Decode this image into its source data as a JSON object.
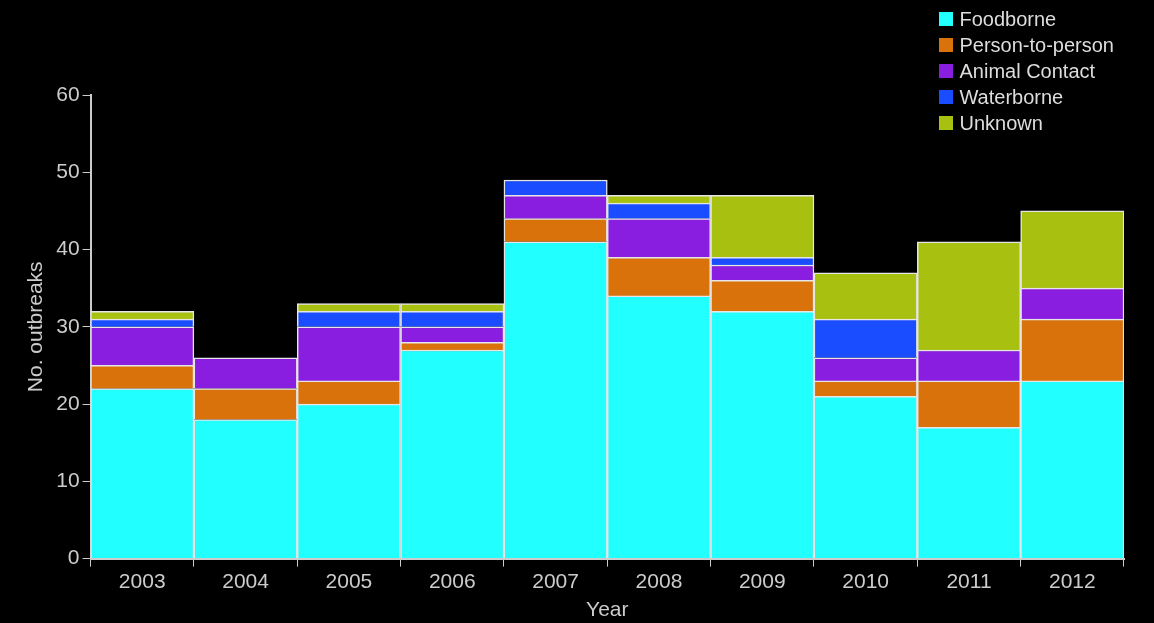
{
  "chart_data": {
    "type": "bar",
    "stacked": true,
    "xlabel": "Year",
    "ylabel": "No. outbreaks",
    "categories": [
      "2003",
      "2004",
      "2005",
      "2006",
      "2007",
      "2008",
      "2009",
      "2010",
      "2011",
      "2012"
    ],
    "series": [
      {
        "name": "Foodborne",
        "color": "#22ffff",
        "values": [
          22,
          18,
          20,
          27,
          41,
          34,
          32,
          21,
          17,
          23
        ]
      },
      {
        "name": "Person-to-person",
        "color": "#d9720a",
        "values": [
          3,
          4,
          3,
          1,
          3,
          5,
          4,
          2,
          6,
          8
        ]
      },
      {
        "name": "Animal Contact",
        "color": "#8a1ee0",
        "values": [
          5,
          4,
          7,
          2,
          3,
          5,
          2,
          3,
          4,
          4
        ]
      },
      {
        "name": "Waterborne",
        "color": "#1a4dff",
        "values": [
          1,
          0,
          2,
          2,
          2,
          2,
          1,
          5,
          0,
          0
        ]
      },
      {
        "name": "Unknown",
        "color": "#a8c010",
        "values": [
          1,
          0,
          1,
          1,
          0,
          1,
          8,
          6,
          14,
          10
        ]
      }
    ],
    "ylim": [
      0,
      60
    ],
    "yticks": [
      0,
      10,
      20,
      30,
      40,
      50,
      60
    ],
    "grid": false,
    "legend": "top right"
  }
}
